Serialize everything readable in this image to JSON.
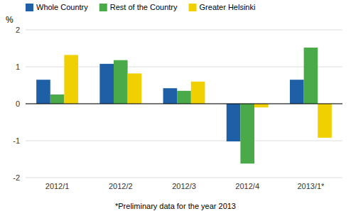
{
  "chart_data": {
    "type": "bar",
    "categories": [
      "2012/1",
      "2012/2",
      "2012/3",
      "2012/4",
      "2013/1*"
    ],
    "series": [
      {
        "name": "Whole Country",
        "color": "#1f5fa6",
        "values": [
          0.65,
          1.08,
          0.42,
          -1.02,
          0.65
        ]
      },
      {
        "name": "Rest of the Country",
        "color": "#4aaa4a",
        "values": [
          0.25,
          1.18,
          0.35,
          -1.62,
          1.52
        ]
      },
      {
        "name": "Greater Helsinki",
        "color": "#f0d000",
        "values": [
          1.32,
          0.82,
          0.6,
          -0.1,
          -0.92
        ]
      }
    ],
    "ylim": [
      -2,
      2
    ],
    "yticks": [
      -2,
      -1,
      0,
      1,
      2
    ],
    "ylabel": "%",
    "footnote": "*Preliminary data for the year 2013",
    "grid": true,
    "legend": "top"
  }
}
